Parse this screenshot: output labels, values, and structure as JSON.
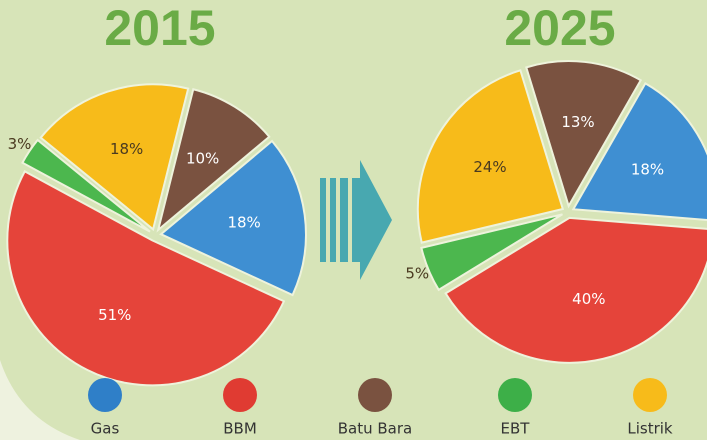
{
  "chart_data": [
    {
      "type": "pie",
      "title": "2015",
      "values": [
        10,
        18,
        51,
        3,
        18
      ],
      "value_labels": [
        "10%",
        "18%",
        "51%",
        "3%",
        "18%"
      ],
      "colors": [
        "#7a5240",
        "#3f8fd2",
        "#e5443a",
        "#4cb74e",
        "#f7bb1a"
      ]
    },
    {
      "type": "pie",
      "title": "2025",
      "values": [
        13,
        18,
        40,
        5,
        24
      ],
      "value_labels": [
        "13%",
        "18%",
        "40%",
        "5%",
        "24%"
      ],
      "colors": [
        "#7a5240",
        "#3f8fd2",
        "#e5443a",
        "#4cb74e",
        "#f7bb1a"
      ]
    }
  ],
  "legend": [
    {
      "name": "Gas",
      "color": "#2f7fc8"
    },
    {
      "name": "BBM",
      "color": "#e03b32"
    },
    {
      "name": "Batu Bara",
      "color": "#7a5240"
    },
    {
      "name": "EBT",
      "color": "#3daf48"
    },
    {
      "name": "Listrik",
      "color": "#f7bb1a"
    }
  ]
}
